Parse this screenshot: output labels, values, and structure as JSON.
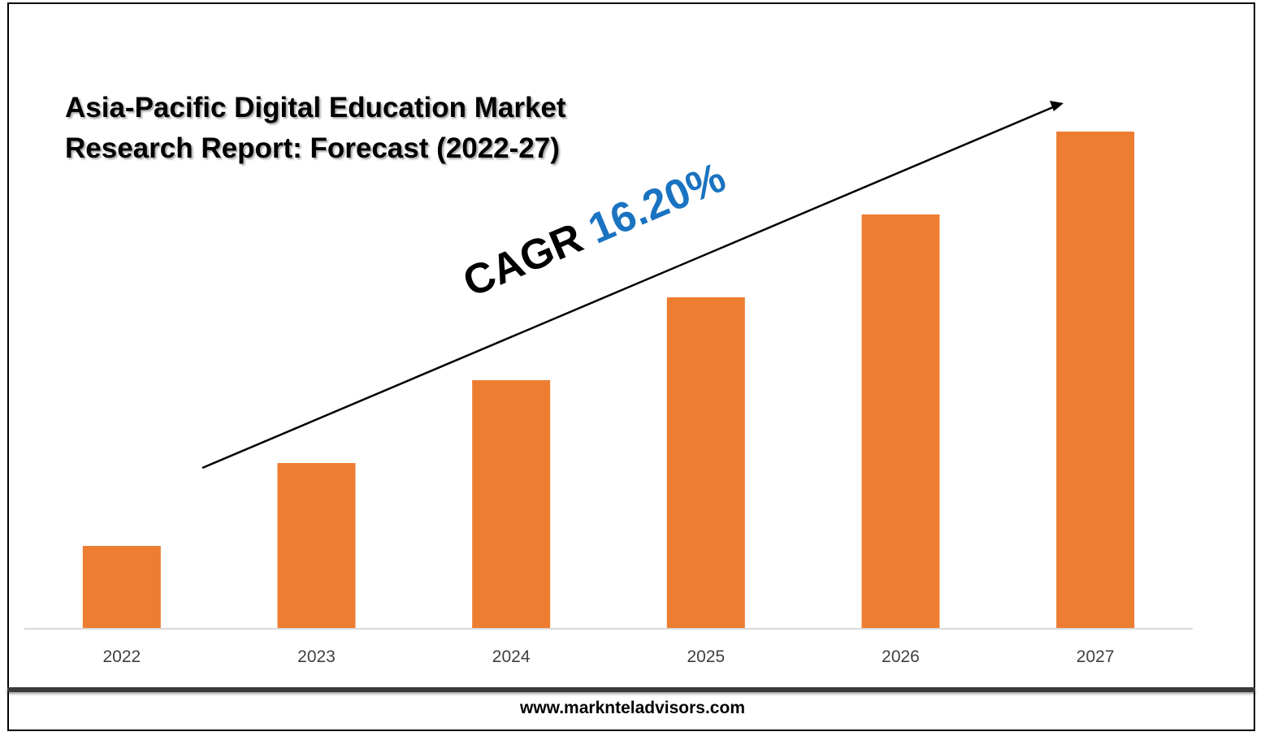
{
  "chart_data": {
    "type": "bar",
    "title_lines": [
      "Asia-Pacific Digital Education Market",
      "Research Report: Forecast (2022-27)"
    ],
    "categories": [
      "2022",
      "2023",
      "2024",
      "2025",
      "2026",
      "2027"
    ],
    "values": [
      1.0,
      2.0,
      3.0,
      4.0,
      5.0,
      6.0
    ],
    "ylim": [
      0,
      6.0
    ],
    "grid": false,
    "bar_color": "#ed7d31",
    "annotation": {
      "label": "CAGR",
      "value": "16.20%",
      "value_color": "#1a73c0"
    }
  },
  "footer": {
    "website": "www.marknteladvisors.com"
  }
}
